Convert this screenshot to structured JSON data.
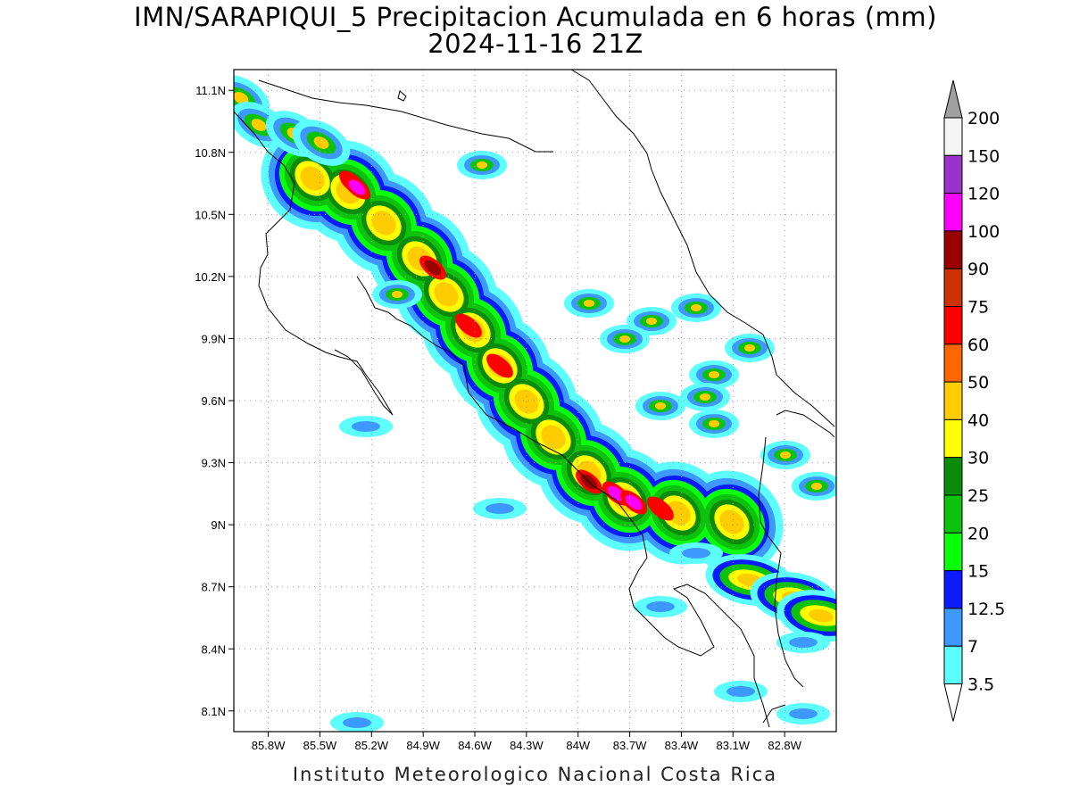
{
  "title_line1": "IMN/SARAPIQUI_5 Precipitacion Acumulada en 6 horas (mm)",
  "title_line2": "2024-11-16 21Z",
  "footer": "Instituto Meteorologico Nacional Costa Rica",
  "map": {
    "lon_range": [
      -86.0,
      -82.5
    ],
    "lat_range": [
      8.0,
      11.2
    ],
    "lon_ticks": [
      "85.8W",
      "85.5W",
      "85.2W",
      "84.9W",
      "84.6W",
      "84.3W",
      "84W",
      "83.7W",
      "83.4W",
      "83.1W",
      "82.8W"
    ],
    "lat_ticks": [
      "11.1N",
      "10.8N",
      "10.5N",
      "10.2N",
      "9.9N",
      "9.6N",
      "9.3N",
      "9N",
      "8.7N",
      "8.4N",
      "8.1N"
    ],
    "grid": true
  },
  "colorbar": {
    "labels": [
      "3.5",
      "7",
      "12.5",
      "15",
      "20",
      "25",
      "30",
      "40",
      "50",
      "60",
      "75",
      "90",
      "100",
      "120",
      "150",
      "200"
    ],
    "colors": [
      "#5cfffc",
      "#3d99ff",
      "#0a1bff",
      "#0aff0a",
      "#0dc20d",
      "#0a8c0a",
      "#ffff00",
      "#ffcc00",
      "#ff6600",
      "#ff0000",
      "#cc3300",
      "#990000",
      "#ff00ff",
      "#9933cc",
      "#f5f5f5",
      "#a0a0a0"
    ]
  }
}
